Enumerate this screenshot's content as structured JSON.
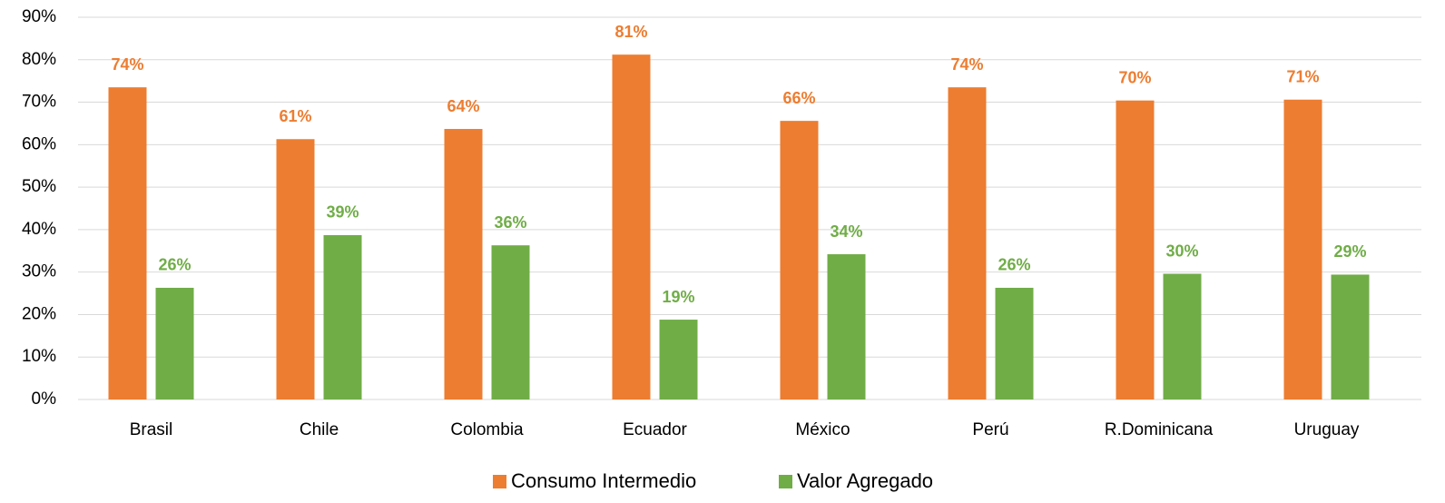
{
  "chart_data": {
    "type": "bar",
    "categories": [
      "Brasil",
      "Chile",
      "Colombia",
      "Ecuador",
      "México",
      "Perú",
      "R.Dominicana",
      "Uruguay"
    ],
    "series": [
      {
        "name": "Consumo Intermedio",
        "color": "#ed7d31",
        "values": [
          73.5,
          61.3,
          63.7,
          81.2,
          65.6,
          73.5,
          70.4,
          70.6
        ],
        "value_labels": [
          "74%",
          "61%",
          "64%",
          "81%",
          "66%",
          "74%",
          "70%",
          "71%"
        ]
      },
      {
        "name": "Valor Agregado",
        "color": "#70ad47",
        "values": [
          26.3,
          38.7,
          36.3,
          18.8,
          34.2,
          26.3,
          29.6,
          29.4
        ],
        "value_labels": [
          "26%",
          "39%",
          "36%",
          "19%",
          "34%",
          "26%",
          "30%",
          "29%"
        ]
      }
    ],
    "ylim": [
      0,
      90
    ],
    "yticks": [
      {
        "value": 0,
        "label": "0%"
      },
      {
        "value": 10,
        "label": "10%"
      },
      {
        "value": 20,
        "label": "20%"
      },
      {
        "value": 30,
        "label": "30%"
      },
      {
        "value": 40,
        "label": "40%"
      },
      {
        "value": 50,
        "label": "50%"
      },
      {
        "value": 60,
        "label": "60%"
      },
      {
        "value": 70,
        "label": "70%"
      },
      {
        "value": 80,
        "label": "80%"
      },
      {
        "value": 90,
        "label": "90%"
      }
    ],
    "grid": true,
    "legend": "bottom"
  }
}
